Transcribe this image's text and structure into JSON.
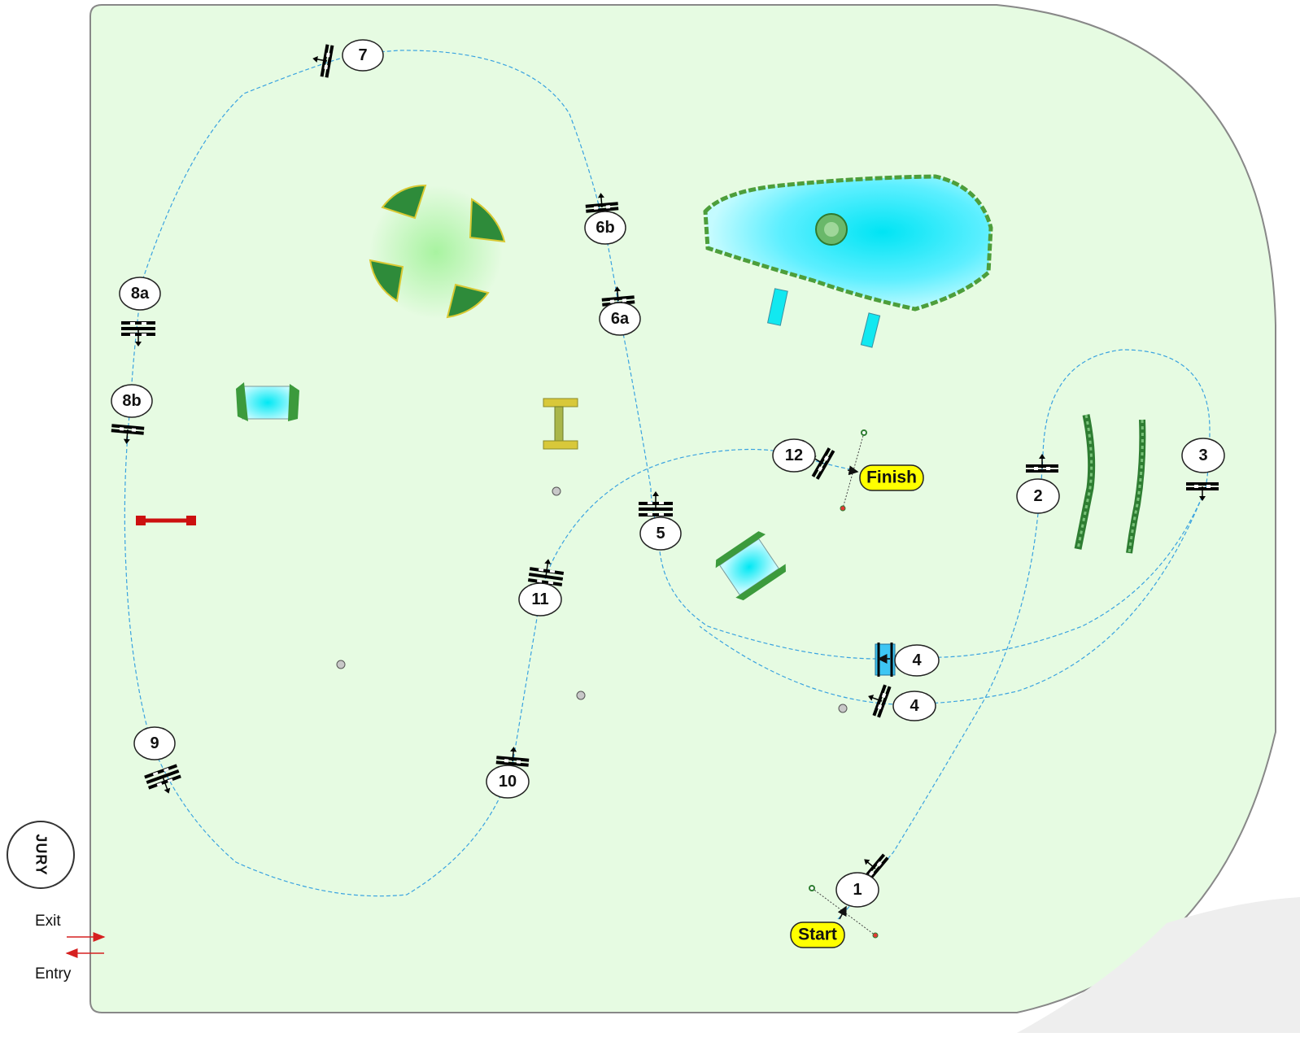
{
  "arena": {
    "fill_color": "#e6fbe2",
    "border_color": "#888888",
    "path_color": "#3aa3e0",
    "water_color": "#12e8f0"
  },
  "side": {
    "jury_label": "JURY",
    "exit_label": "Exit",
    "entry_label": "Entry"
  },
  "markers": {
    "start_label": "Start",
    "finish_label": "Finish"
  },
  "obstacles": [
    {
      "label": "1"
    },
    {
      "label": "2"
    },
    {
      "label": "3"
    },
    {
      "label": "4"
    },
    {
      "label": "4"
    },
    {
      "label": "5"
    },
    {
      "label": "6a"
    },
    {
      "label": "6b"
    },
    {
      "label": "7"
    },
    {
      "label": "8a"
    },
    {
      "label": "8b"
    },
    {
      "label": "9"
    },
    {
      "label": "10"
    },
    {
      "label": "11"
    },
    {
      "label": "12"
    }
  ]
}
